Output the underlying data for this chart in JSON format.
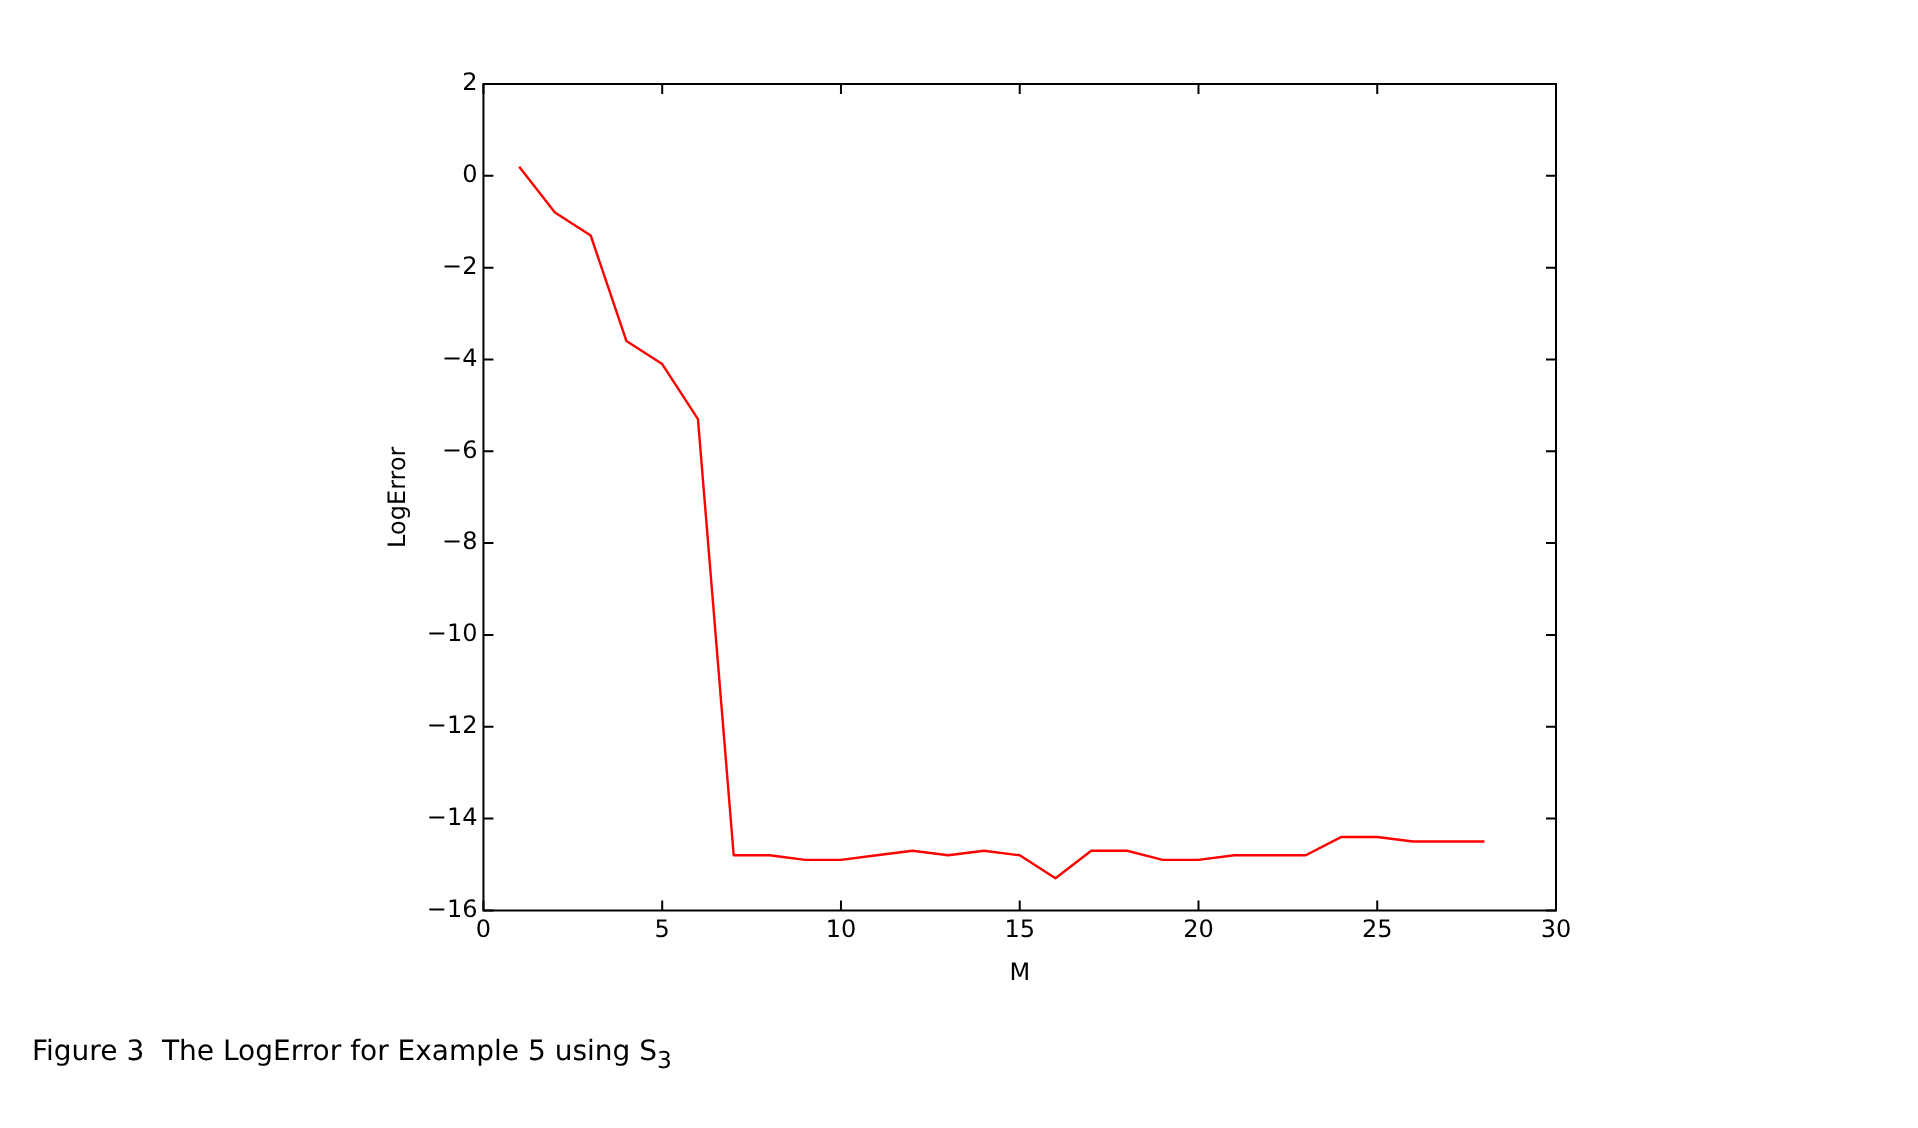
{
  "chart_data": {
    "type": "line",
    "xlabel": "M",
    "ylabel": "LogError",
    "x": [
      1,
      2,
      3,
      4,
      5,
      6,
      7,
      8,
      9,
      10,
      11,
      12,
      13,
      14,
      15,
      16,
      17,
      18,
      19,
      20,
      21,
      22,
      23,
      24,
      25,
      26,
      27,
      28
    ],
    "series": [
      {
        "color": "#ff0000",
        "values": [
          0.2,
          -0.8,
          -1.3,
          -3.6,
          -4.1,
          -5.3,
          -14.8,
          -14.8,
          -14.9,
          -14.9,
          -14.8,
          -14.7,
          -14.8,
          -14.7,
          -14.8,
          -15.3,
          -14.7,
          -14.7,
          -14.9,
          -14.9,
          -14.8,
          -14.8,
          -14.8,
          -14.4,
          -14.4,
          -14.5,
          -14.5,
          -14.5
        ]
      }
    ],
    "xlim": [
      0,
      30
    ],
    "xticks": [
      0,
      5,
      10,
      15,
      20,
      25,
      30
    ],
    "ylim": [
      -16,
      2
    ],
    "yticks": [
      -16,
      -14,
      -12,
      -10,
      -8,
      -6,
      -4,
      -2,
      0,
      2
    ],
    "grid": false,
    "legend": false,
    "marker": "none",
    "line_style": "solid",
    "annotations": [
      "Figure 3  The LogError for Example 5 using S$_{3}$"
    ]
  }
}
